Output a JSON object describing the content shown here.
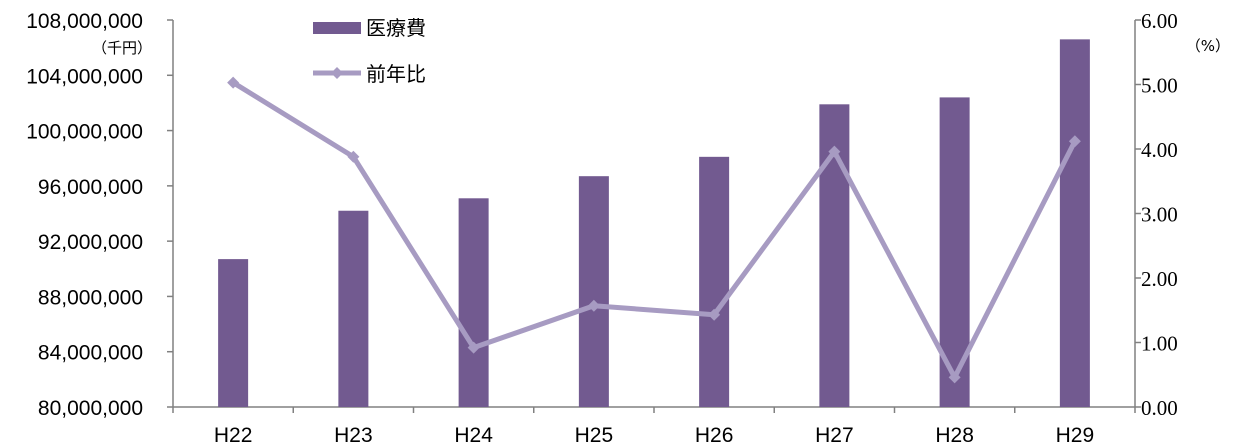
{
  "chart_data": {
    "type": "bar+line",
    "categories": [
      "H22",
      "H23",
      "H24",
      "H25",
      "H26",
      "H27",
      "H28",
      "H29"
    ],
    "series": [
      {
        "name": "医療費",
        "type": "bar",
        "axis": "left",
        "values": [
          90700000,
          94200000,
          95100000,
          96700000,
          98100000,
          101900000,
          102400000,
          106600000
        ]
      },
      {
        "name": "前年比",
        "type": "line",
        "axis": "right",
        "values": [
          5.03,
          3.88,
          0.92,
          1.57,
          1.43,
          3.96,
          0.46,
          4.12
        ]
      }
    ],
    "left_axis": {
      "unit": "（千円）",
      "ylim": [
        80000000,
        108000000
      ],
      "ticks": [
        80000000,
        84000000,
        88000000,
        92000000,
        96000000,
        100000000,
        104000000,
        108000000
      ],
      "tick_labels": [
        "80,000,000",
        "84,000,000",
        "88,000,000",
        "92,000,000",
        "96,000,000",
        "100,000,000",
        "104,000,000",
        "108,000,000"
      ]
    },
    "right_axis": {
      "unit": "（%）",
      "ylim": [
        0,
        6
      ],
      "ticks": [
        0,
        1,
        2,
        3,
        4,
        5,
        6
      ],
      "tick_labels": [
        "0.00",
        "1.00",
        "2.00",
        "3.00",
        "4.00",
        "5.00",
        "6.00"
      ]
    },
    "grid": false,
    "legend_position": "top-left",
    "colors": {
      "bar": "#725a90",
      "line": "#a79bc2",
      "axis": "#808080"
    }
  }
}
